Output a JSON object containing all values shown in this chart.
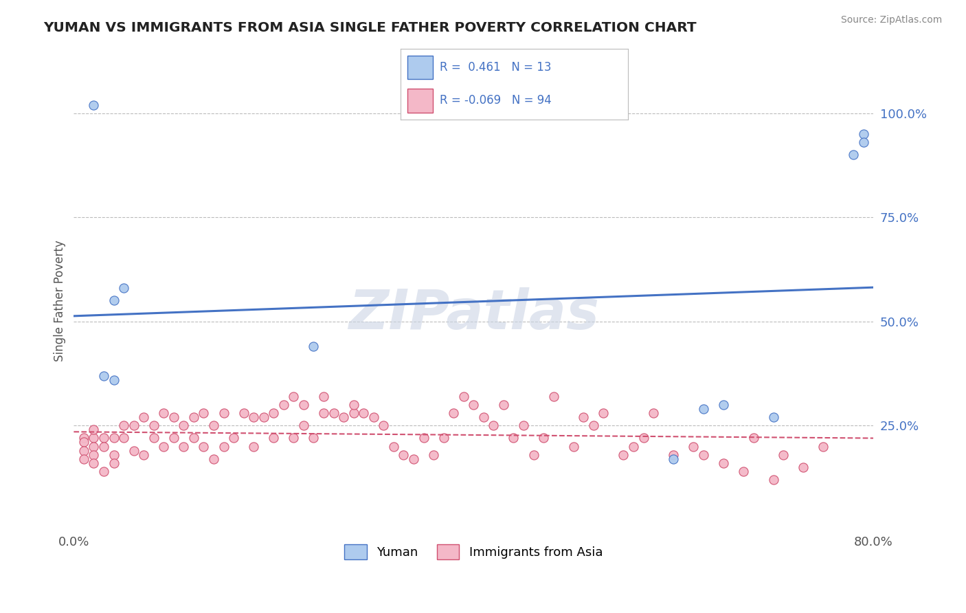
{
  "title": "YUMAN VS IMMIGRANTS FROM ASIA SINGLE FATHER POVERTY CORRELATION CHART",
  "source": "Source: ZipAtlas.com",
  "ylabel": "Single Father Poverty",
  "xlim": [
    0.0,
    0.8
  ],
  "ylim": [
    0.0,
    1.1
  ],
  "x_ticks": [
    0.0,
    0.2,
    0.4,
    0.6,
    0.8
  ],
  "x_tick_labels": [
    "0.0%",
    "",
    "",
    "",
    "80.0%"
  ],
  "y_ticks_right": [
    0.25,
    0.5,
    0.75,
    1.0
  ],
  "y_tick_labels_right": [
    "25.0%",
    "50.0%",
    "75.0%",
    "100.0%"
  ],
  "blue_R": 0.461,
  "blue_N": 13,
  "pink_R": -0.069,
  "pink_N": 94,
  "blue_color": "#aecbee",
  "blue_line_color": "#4472c4",
  "pink_color": "#f4b8c8",
  "pink_line_color": "#d05070",
  "background_color": "#ffffff",
  "grid_color": "#bbbbbb",
  "watermark": "ZIPatlas",
  "watermark_color": "#ccd5e5",
  "blue_x": [
    0.02,
    0.03,
    0.04,
    0.04,
    0.05,
    0.24,
    0.6,
    0.63,
    0.65,
    0.7,
    0.78,
    0.79,
    0.79
  ],
  "blue_y": [
    1.02,
    0.37,
    0.36,
    0.55,
    0.58,
    0.44,
    0.17,
    0.29,
    0.3,
    0.27,
    0.9,
    0.95,
    0.93
  ],
  "pink_x": [
    0.01,
    0.01,
    0.01,
    0.01,
    0.02,
    0.02,
    0.02,
    0.02,
    0.02,
    0.03,
    0.03,
    0.03,
    0.04,
    0.04,
    0.04,
    0.05,
    0.05,
    0.06,
    0.06,
    0.07,
    0.07,
    0.08,
    0.08,
    0.09,
    0.09,
    0.1,
    0.1,
    0.11,
    0.11,
    0.12,
    0.12,
    0.13,
    0.13,
    0.14,
    0.14,
    0.15,
    0.15,
    0.16,
    0.17,
    0.18,
    0.18,
    0.19,
    0.2,
    0.2,
    0.21,
    0.22,
    0.22,
    0.23,
    0.23,
    0.24,
    0.25,
    0.25,
    0.26,
    0.27,
    0.28,
    0.28,
    0.29,
    0.3,
    0.31,
    0.32,
    0.33,
    0.34,
    0.35,
    0.36,
    0.37,
    0.38,
    0.39,
    0.4,
    0.41,
    0.42,
    0.43,
    0.44,
    0.45,
    0.46,
    0.47,
    0.48,
    0.5,
    0.51,
    0.52,
    0.53,
    0.55,
    0.56,
    0.57,
    0.58,
    0.6,
    0.62,
    0.63,
    0.65,
    0.67,
    0.68,
    0.7,
    0.71,
    0.73,
    0.75
  ],
  "pink_y": [
    0.22,
    0.21,
    0.19,
    0.17,
    0.22,
    0.2,
    0.18,
    0.24,
    0.16,
    0.22,
    0.2,
    0.14,
    0.18,
    0.22,
    0.16,
    0.22,
    0.25,
    0.19,
    0.25,
    0.18,
    0.27,
    0.22,
    0.25,
    0.2,
    0.28,
    0.22,
    0.27,
    0.2,
    0.25,
    0.22,
    0.27,
    0.2,
    0.28,
    0.17,
    0.25,
    0.2,
    0.28,
    0.22,
    0.28,
    0.27,
    0.2,
    0.27,
    0.22,
    0.28,
    0.3,
    0.22,
    0.32,
    0.25,
    0.3,
    0.22,
    0.28,
    0.32,
    0.28,
    0.27,
    0.28,
    0.3,
    0.28,
    0.27,
    0.25,
    0.2,
    0.18,
    0.17,
    0.22,
    0.18,
    0.22,
    0.28,
    0.32,
    0.3,
    0.27,
    0.25,
    0.3,
    0.22,
    0.25,
    0.18,
    0.22,
    0.32,
    0.2,
    0.27,
    0.25,
    0.28,
    0.18,
    0.2,
    0.22,
    0.28,
    0.18,
    0.2,
    0.18,
    0.16,
    0.14,
    0.22,
    0.12,
    0.18,
    0.15,
    0.2
  ]
}
